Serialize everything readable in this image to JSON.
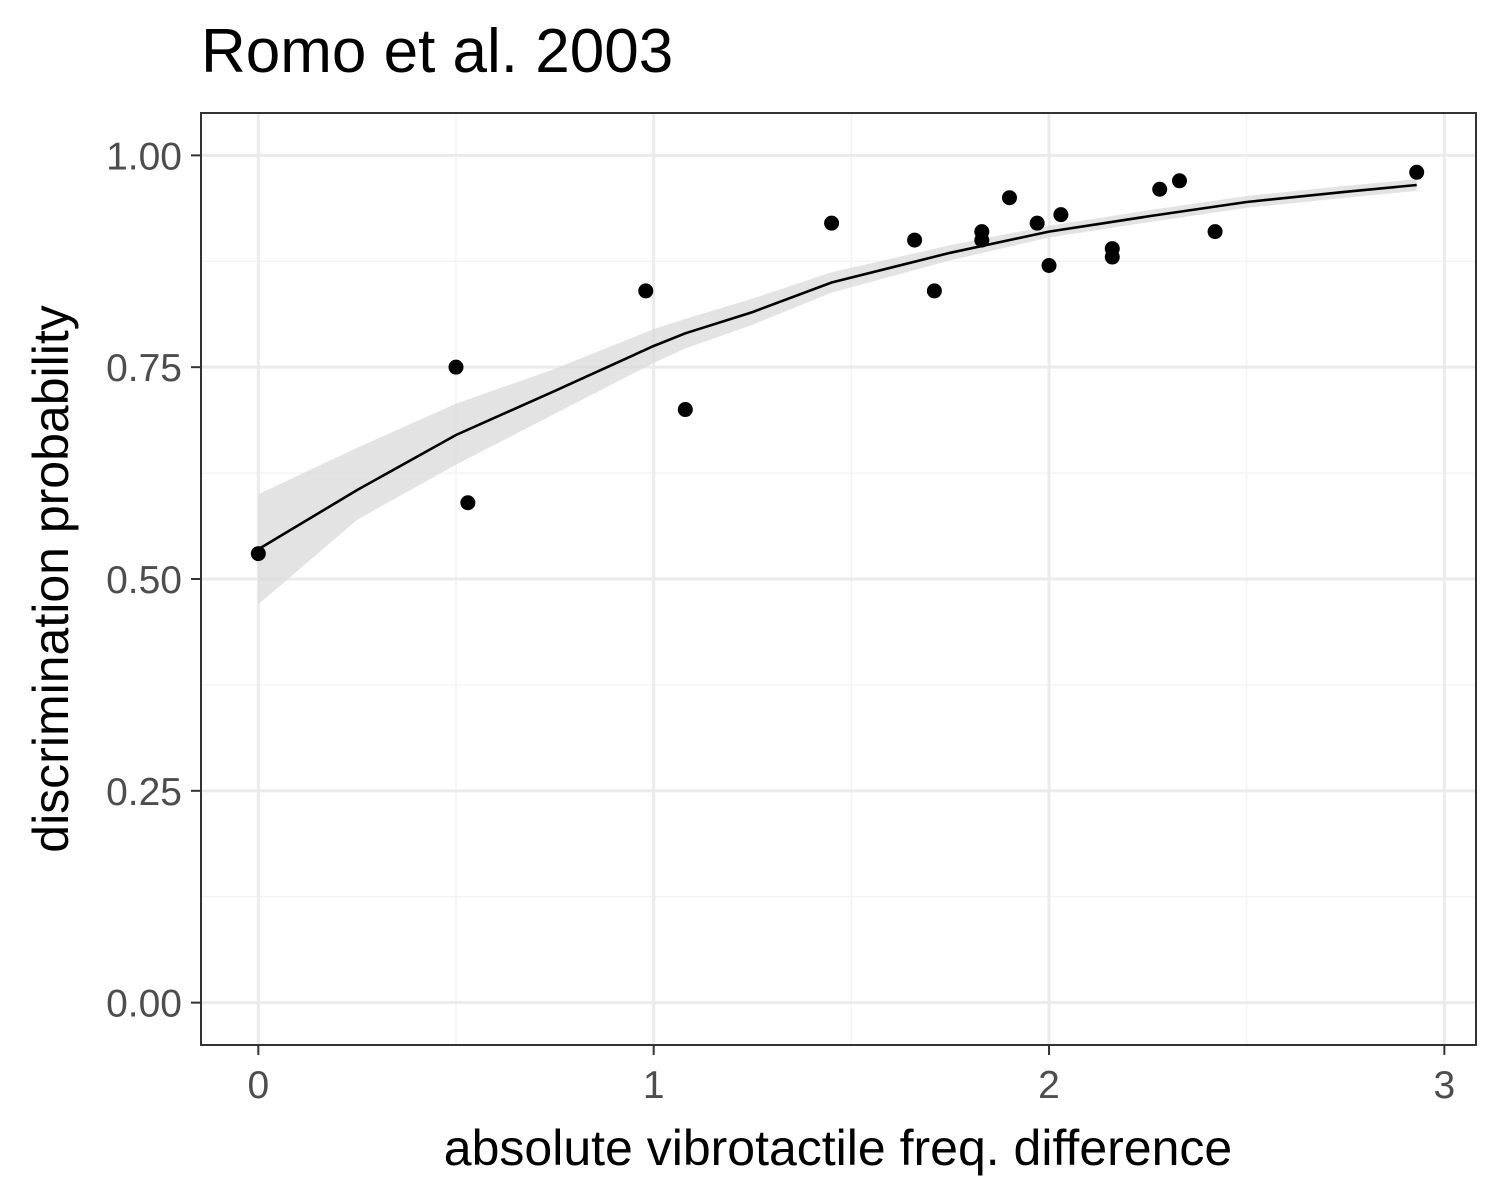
{
  "chart_data": {
    "type": "scatter",
    "title": "Romo et al. 2003",
    "xlabel": "absolute vibrotactile freq. difference",
    "ylabel": "discrimination probability",
    "xlim": [
      -0.145,
      3.08
    ],
    "ylim": [
      -0.05,
      1.05
    ],
    "x_ticks": [
      0,
      1,
      2,
      3
    ],
    "x_tick_labels": [
      "0",
      "1",
      "2",
      "3"
    ],
    "y_ticks": [
      0,
      0.25,
      0.5,
      0.75,
      1.0
    ],
    "y_tick_labels": [
      "0.00",
      "0.25",
      "0.50",
      "0.75",
      "1.00"
    ],
    "grid": true,
    "legend": "none",
    "colors": {
      "points": "#000000",
      "fit_line": "#000000",
      "ribbon": "#d9d9d9",
      "grid_major": "#ebebeb",
      "grid_minor": "#f4f4f4",
      "panel_border": "#333333"
    },
    "points": [
      {
        "x": 0.0,
        "y": 0.53
      },
      {
        "x": 0.5,
        "y": 0.75
      },
      {
        "x": 0.53,
        "y": 0.59
      },
      {
        "x": 0.98,
        "y": 0.84
      },
      {
        "x": 1.08,
        "y": 0.7
      },
      {
        "x": 1.45,
        "y": 0.92
      },
      {
        "x": 1.66,
        "y": 0.9
      },
      {
        "x": 1.71,
        "y": 0.84
      },
      {
        "x": 1.83,
        "y": 0.91
      },
      {
        "x": 1.83,
        "y": 0.9
      },
      {
        "x": 1.9,
        "y": 0.95
      },
      {
        "x": 1.97,
        "y": 0.92
      },
      {
        "x": 2.0,
        "y": 0.87
      },
      {
        "x": 2.03,
        "y": 0.93
      },
      {
        "x": 2.16,
        "y": 0.89
      },
      {
        "x": 2.16,
        "y": 0.88
      },
      {
        "x": 2.28,
        "y": 0.96
      },
      {
        "x": 2.33,
        "y": 0.97
      },
      {
        "x": 2.42,
        "y": 0.91
      },
      {
        "x": 2.93,
        "y": 0.98
      }
    ],
    "fit": {
      "x": [
        0.0,
        0.25,
        0.5,
        0.75,
        1.0,
        1.08,
        1.25,
        1.45,
        1.75,
        2.0,
        2.25,
        2.5,
        2.75,
        2.93
      ],
      "y": [
        0.535,
        0.605,
        0.67,
        0.722,
        0.775,
        0.79,
        0.815,
        0.85,
        0.885,
        0.91,
        0.928,
        0.945,
        0.957,
        0.965
      ],
      "lower": [
        0.47,
        0.57,
        0.635,
        0.695,
        0.755,
        0.772,
        0.8,
        0.838,
        0.876,
        0.903,
        0.921,
        0.938,
        0.95,
        0.958
      ],
      "upper": [
        0.6,
        0.655,
        0.707,
        0.748,
        0.795,
        0.807,
        0.831,
        0.862,
        0.894,
        0.917,
        0.935,
        0.952,
        0.964,
        0.972
      ]
    }
  }
}
